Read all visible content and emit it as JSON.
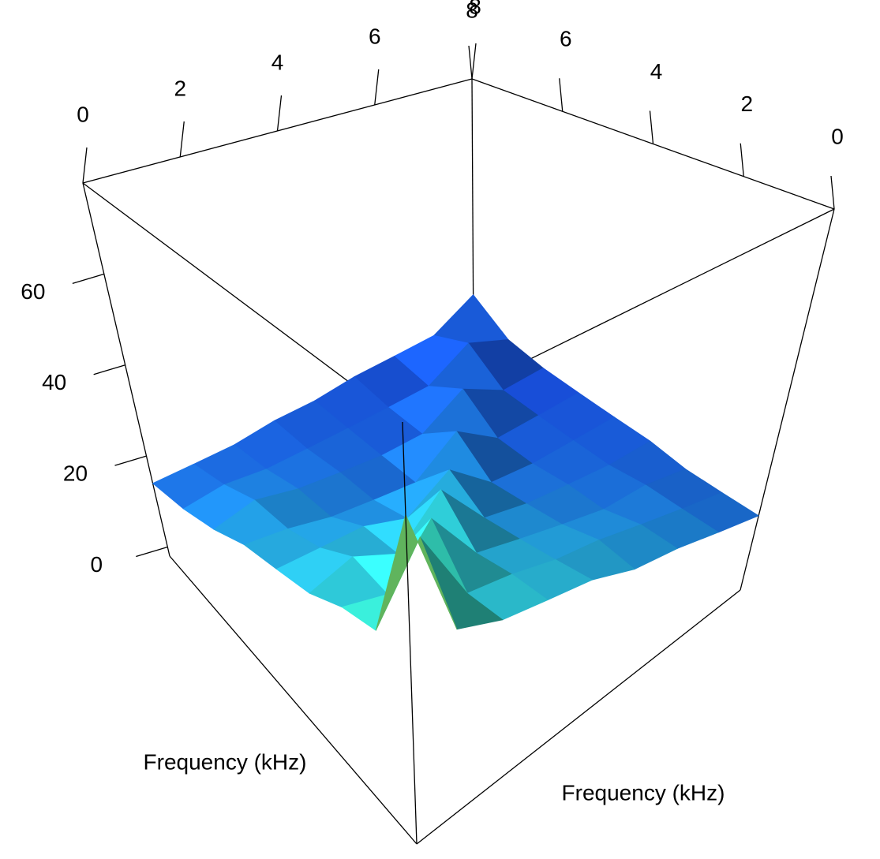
{
  "chart_data": {
    "type": "surface",
    "x_label": "Frequency (kHz)",
    "y_label": "Frequency (kHz)",
    "x": [
      0,
      1,
      2,
      3,
      4,
      5,
      6,
      7,
      8
    ],
    "y": [
      0,
      1,
      2,
      3,
      4,
      5,
      6,
      7,
      8
    ],
    "z": [
      [
        62,
        33,
        31,
        27,
        25,
        23,
        19,
        16,
        14
      ],
      [
        34,
        46,
        28,
        29,
        24,
        21,
        20,
        16,
        13
      ],
      [
        30,
        29,
        38,
        24,
        23,
        18,
        17,
        14,
        12
      ],
      [
        28,
        27,
        25,
        32,
        19,
        16,
        15,
        13,
        12
      ],
      [
        26,
        24,
        22,
        20,
        24,
        14,
        13,
        12,
        11
      ],
      [
        22,
        22,
        19,
        17,
        15,
        20,
        12,
        11,
        11
      ],
      [
        20,
        19,
        16,
        15,
        13,
        12,
        17,
        10,
        10
      ],
      [
        17,
        16,
        15,
        13,
        12,
        11,
        10,
        15,
        9
      ],
      [
        14,
        13,
        12,
        12,
        11,
        10,
        9,
        9,
        14
      ]
    ],
    "xlim": [
      0,
      8
    ],
    "ylim": [
      0,
      8
    ],
    "zlim": [
      -2,
      80
    ],
    "xticks": [
      0,
      2,
      4,
      6,
      8
    ],
    "yticks": [
      0,
      2,
      4,
      6,
      8
    ],
    "zticks": [
      0,
      20,
      40,
      60
    ],
    "colormap": [
      "#1747d8",
      "#1f8fd8",
      "#2ec9d0",
      "#2aa070",
      "#e0d020",
      "#e05010"
    ]
  }
}
